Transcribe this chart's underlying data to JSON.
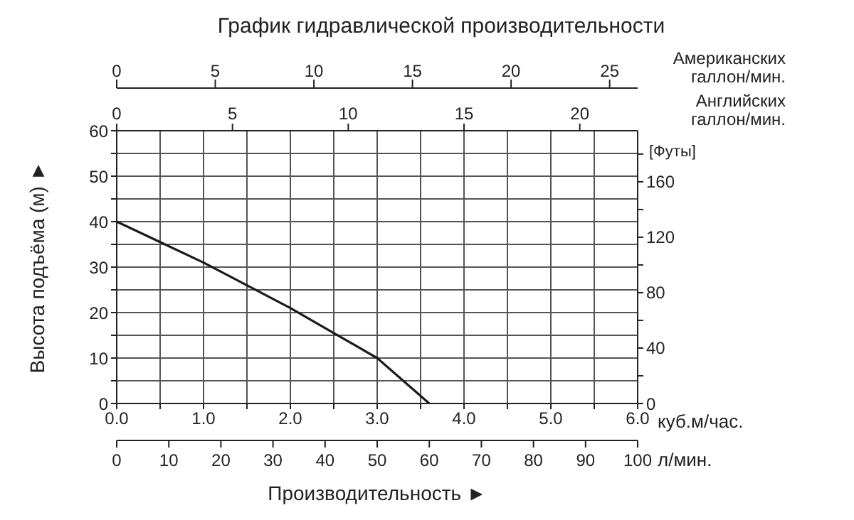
{
  "chart_data": {
    "type": "line",
    "title": "График гидравлической производительности",
    "xlabel": "Производительность ►",
    "ylabel": "Высота подъёма (м) ►",
    "y2label": "[Футы]",
    "x2label": "Американских галлон/мин.",
    "annotations": [
      "0",
      "5",
      "10",
      "15",
      "20",
      "Английских галлон/мин.",
      "куб.м/час.",
      "0",
      "10",
      "20",
      "30",
      "40",
      "50",
      "60",
      "70",
      "80",
      "90",
      "100",
      "л/мин."
    ],
    "series": [
      {
        "color": "#1a1a1a",
        "x": [
          0,
          0.5,
          1,
          1.5,
          2,
          2.5,
          3,
          3.6
        ],
        "values": [
          40,
          35.5,
          31,
          26,
          21,
          15.5,
          10,
          0
        ]
      }
    ],
    "xlim": [
      0,
      6
    ],
    "xticks": [
      {
        "value": 0,
        "label": "0.0"
      },
      {
        "value": 0.5,
        "label": null
      },
      {
        "value": 1,
        "label": "1.0"
      },
      {
        "value": 1.5,
        "label": null
      },
      {
        "value": 2,
        "label": "2.0"
      },
      {
        "value": 2.5,
        "label": null
      },
      {
        "value": 3,
        "label": "3.0"
      },
      {
        "value": 3.5,
        "label": null
      },
      {
        "value": 4,
        "label": "4.0"
      },
      {
        "value": 4.5,
        "label": null
      },
      {
        "value": 5,
        "label": "5.0"
      },
      {
        "value": 5.5,
        "label": null
      },
      {
        "value": 6,
        "label": "6.0"
      }
    ],
    "x2lim": [
      0,
      26.42
    ],
    "x2ticks": [
      0,
      5,
      10,
      15,
      20,
      25
    ],
    "ylim": [
      0,
      60
    ],
    "yticks": [
      0,
      {
        "value": 5,
        "label": null
      },
      10,
      {
        "value": 15,
        "label": null
      },
      20,
      {
        "value": 25,
        "label": null
      },
      30,
      {
        "value": 35,
        "label": null
      },
      40,
      {
        "value": 45,
        "label": null
      },
      50,
      {
        "value": 55,
        "label": null
      },
      60
    ],
    "y2lim": [
      0,
      196.85
    ],
    "y2ticks": [
      0,
      {
        "value": 20,
        "label": null
      },
      40,
      {
        "value": 60,
        "label": null
      },
      80,
      {
        "value": 100,
        "label": null
      },
      120,
      {
        "value": 140,
        "label": null
      },
      160,
      {
        "value": 180,
        "label": null
      }
    ],
    "grid": true,
    "marker": "none",
    "line_style": "solid"
  }
}
